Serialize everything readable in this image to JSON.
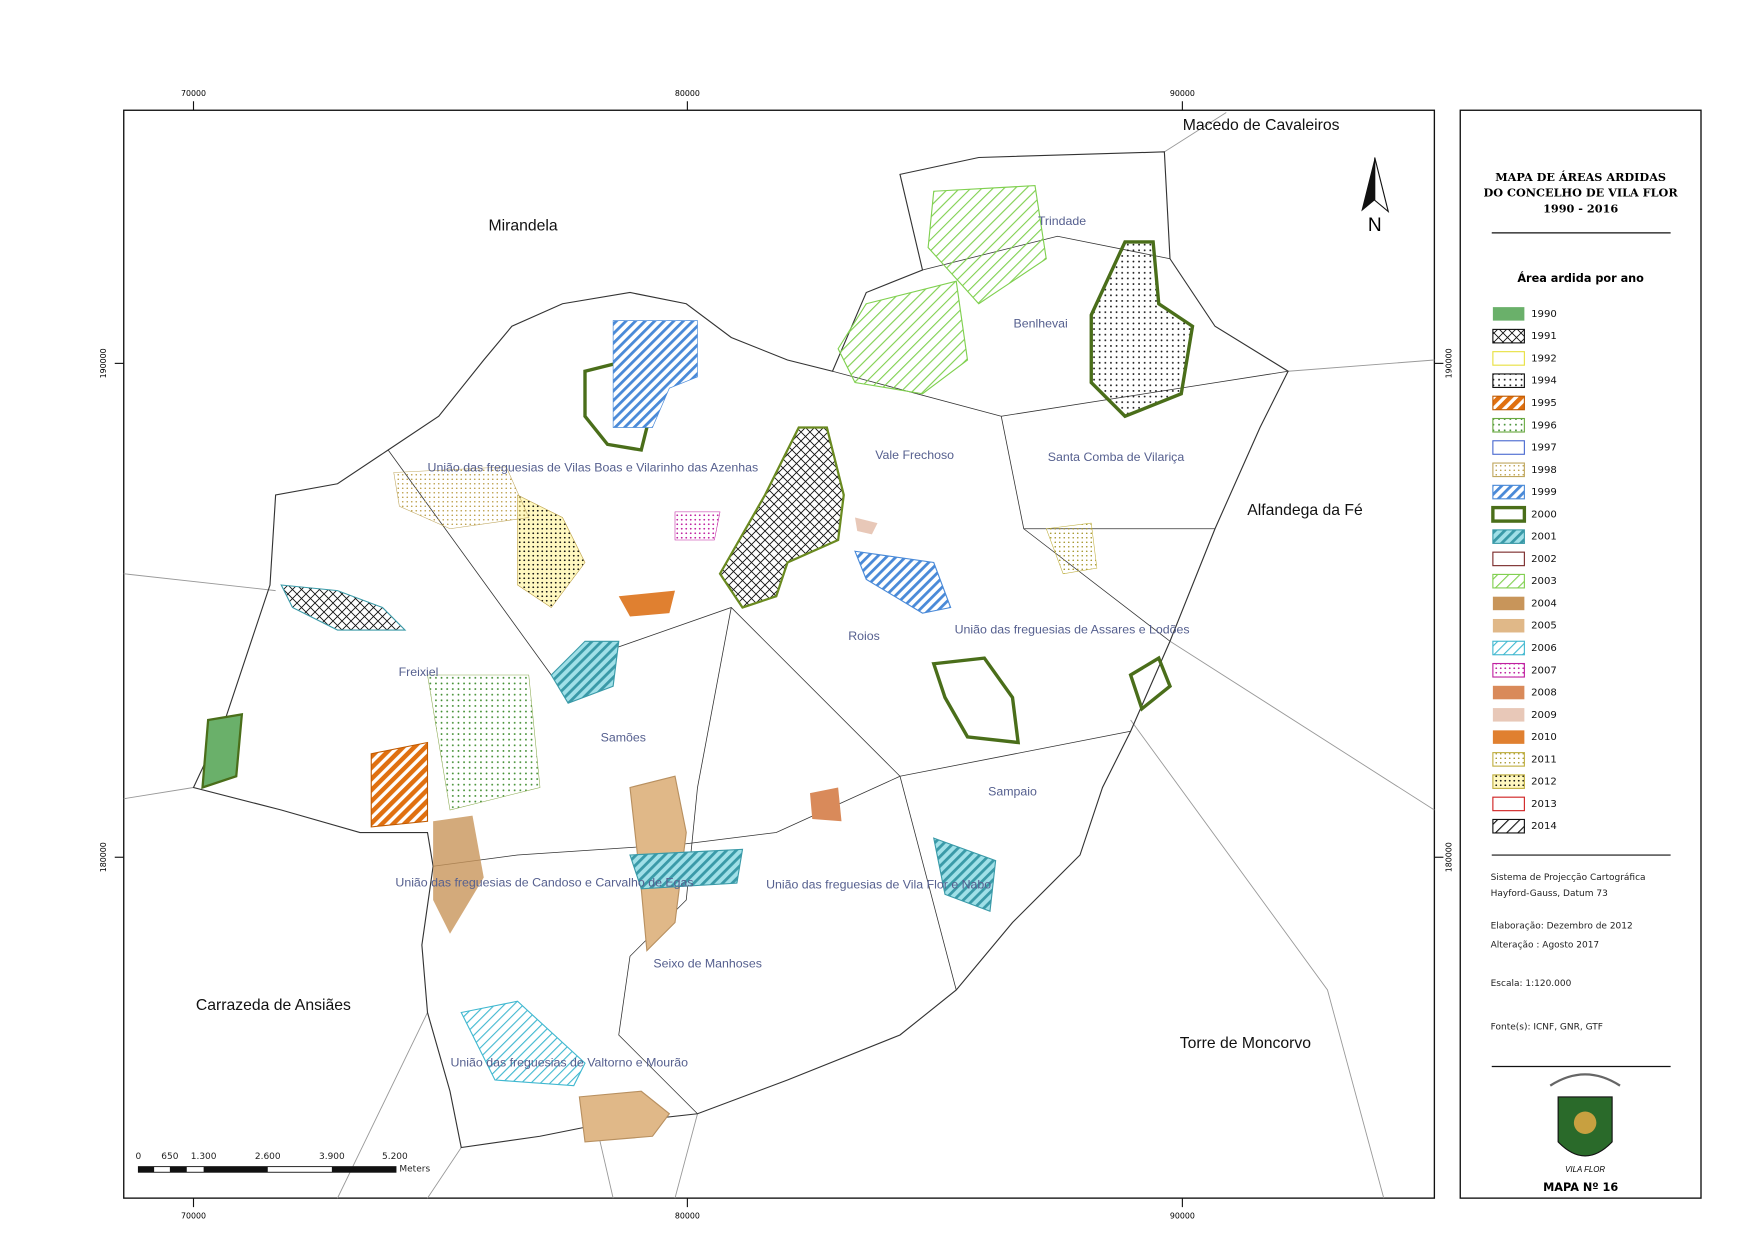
{
  "map": {
    "x_ticks": [
      70000,
      80000,
      90000
    ],
    "y_ticks": [
      190000,
      180000
    ],
    "neighbors": [
      "Macedo de Cavaleiros",
      "Mirandela",
      "Alfandega da Fé",
      "Carrazeda de Ansiães",
      "Torre de Moncorvo"
    ],
    "parishes": [
      "Trindade",
      "Benlhevai",
      "Vale Frechoso",
      "Santa Comba de Vilariça",
      "União das freguesias de Vilas Boas e Vilarinho das Azenhas",
      "Roios",
      "União das freguesias de Assares e Lodões",
      "Freixiel",
      "Samões",
      "Sampaio",
      "União das freguesias de Candoso e Carvalho de Egas",
      "União das freguesias de Vila Flor e Nabo",
      "Seixo de Manhoses",
      "União das freguesias de Valtorno e Mourão"
    ],
    "north": "N",
    "scale_bar": {
      "ticks": [
        "0",
        "650",
        "1.300",
        "2.600",
        "3.900",
        "5.200"
      ],
      "unit": "Meters"
    }
  },
  "legend": {
    "title": [
      "MAPA DE ÁREAS ARDIDAS",
      "DO CONCELHO DE VILA FLOR",
      "1990 - 2016"
    ],
    "subtitle": "Área ardida por ano",
    "items": [
      "1990",
      "1991",
      "1992",
      "1994",
      "1995",
      "1996",
      "1997",
      "1998",
      "1999",
      "2000",
      "2001",
      "2002",
      "2003",
      "2004",
      "2005",
      "2006",
      "2007",
      "2008",
      "2009",
      "2010",
      "2011",
      "2012",
      "2013",
      "2014"
    ],
    "notes": [
      "Sistema de Projecção Cartográfica",
      "Hayford-Gauss, Datum 73",
      "Elaboração: Dezembro de 2012",
      "Alteração : Agosto 2017",
      "Escala:  1:120.000",
      "Fonte(s): ICNF, GNR, GTF"
    ],
    "emblem": "VILA FLOR",
    "map_number": "MAPA Nº 16"
  }
}
